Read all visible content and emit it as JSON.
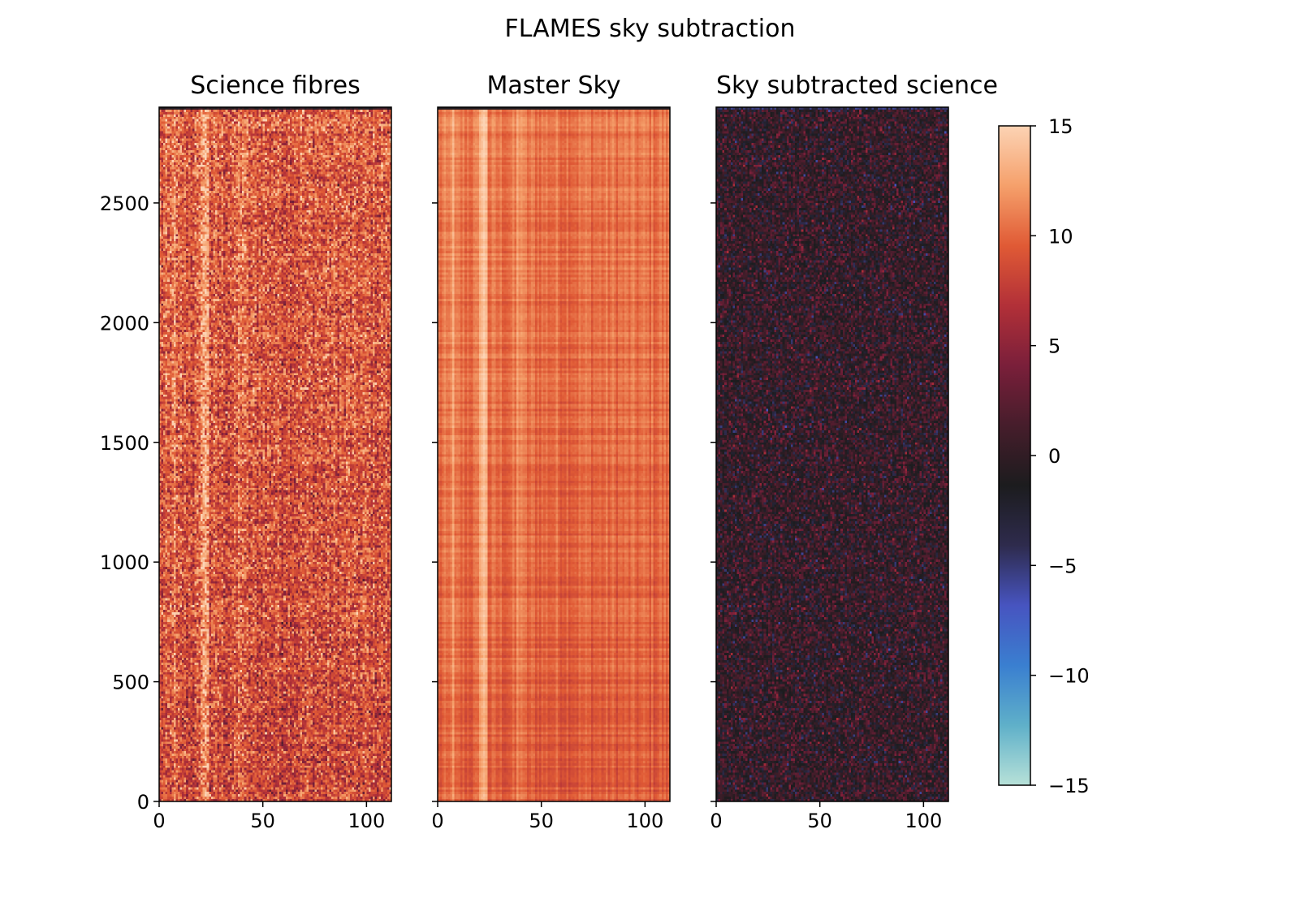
{
  "figure_title": "FLAMES sky subtraction",
  "chart_data": [
    {
      "type": "heatmap",
      "title": "Science fibres",
      "xlim": [
        0,
        112
      ],
      "ylim": [
        0,
        2900
      ],
      "xticks": [
        0,
        50,
        100
      ],
      "yticks": [
        0,
        500,
        1000,
        1500,
        2000,
        2500
      ],
      "ytick_labels_visible": true,
      "value_range": [
        -15,
        15
      ],
      "description_of_values": "noisy positive flux, mostly between 3 and 15"
    },
    {
      "type": "heatmap",
      "title": "Master Sky",
      "xlim": [
        0,
        112
      ],
      "ylim": [
        0,
        2900
      ],
      "xticks": [
        0,
        50,
        100
      ],
      "yticks": [
        0,
        500,
        1000,
        1500,
        2000,
        2500
      ],
      "ytick_labels_visible": false,
      "value_range": [
        -15,
        15
      ],
      "description_of_values": "smooth sky spectrum around 8 to 13, bright column near x=22"
    },
    {
      "type": "heatmap",
      "title": "Sky subtracted science",
      "xlim": [
        0,
        112
      ],
      "ylim": [
        0,
        2900
      ],
      "xticks": [
        0,
        50,
        100
      ],
      "yticks": [
        0,
        500,
        1000,
        1500,
        2000,
        2500
      ],
      "ytick_labels_visible": false,
      "value_range": [
        -15,
        15
      ],
      "description_of_values": "residual noise centered near 0"
    }
  ],
  "colorbar": {
    "ticks": [
      15,
      10,
      5,
      0,
      -5,
      -10,
      -15
    ],
    "tick_labels": [
      "15",
      "10",
      "5",
      "0",
      "−5",
      "−10",
      "−15"
    ],
    "vmin": -15,
    "vmax": 15,
    "colormap": "icefire",
    "colors": [
      "#b7e1d8",
      "#5fb0c9",
      "#3a7fd0",
      "#4754c0",
      "#2e2b4d",
      "#1c1c1e",
      "#461d2b",
      "#7a1f3a",
      "#b23038",
      "#e05a35",
      "#f5a06b",
      "#fcd3b4"
    ]
  }
}
